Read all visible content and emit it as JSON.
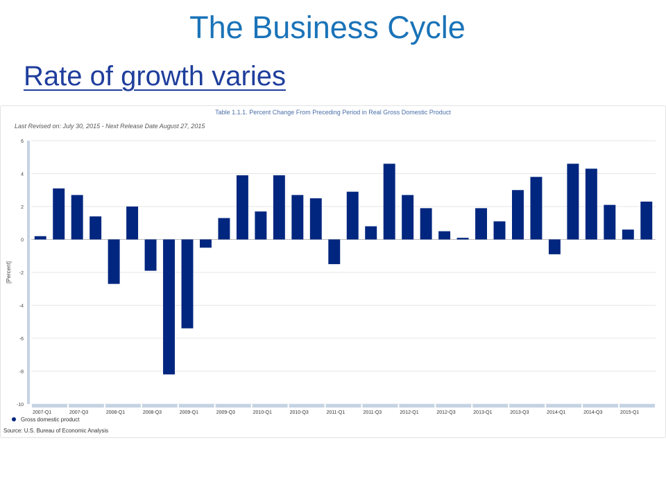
{
  "slide": {
    "title": "The Business Cycle",
    "subtitle": "Rate of growth varies"
  },
  "colors": {
    "bar": "#00267f",
    "title": "#1a73b8",
    "subtitle": "#1f3e9c",
    "axis_band": "#c5d3e3",
    "grid": "#e6e6e6"
  },
  "chart_data": {
    "type": "bar",
    "title": "Table 1.1.1. Percent Change From Preceding Period in Real Gross Domestic Product",
    "subtitle": "Last Revised on: July 30, 2015 - Next Release Date August 27, 2015",
    "ylabel": "[Percent]",
    "ylim": [
      -10,
      6
    ],
    "yticks": [
      6,
      4,
      2,
      0,
      -2,
      -4,
      -6,
      -8,
      -10
    ],
    "grid": true,
    "x_tick_labels": [
      "2007-Q1",
      "2007-Q3",
      "2008-Q1",
      "2008-Q3",
      "2009-Q1",
      "2009-Q3",
      "2010-Q1",
      "2010-Q3",
      "2011-Q1",
      "2011-Q3",
      "2012-Q1",
      "2012-Q3",
      "2013-Q1",
      "2013-Q3",
      "2014-Q1",
      "2014-Q3",
      "2015-Q1"
    ],
    "categories": [
      "2007-Q1",
      "2007-Q2",
      "2007-Q3",
      "2007-Q4",
      "2008-Q1",
      "2008-Q2",
      "2008-Q3",
      "2008-Q4",
      "2009-Q1",
      "2009-Q2",
      "2009-Q3",
      "2009-Q4",
      "2010-Q1",
      "2010-Q2",
      "2010-Q3",
      "2010-Q4",
      "2011-Q1",
      "2011-Q2",
      "2011-Q3",
      "2011-Q4",
      "2012-Q1",
      "2012-Q2",
      "2012-Q3",
      "2012-Q4",
      "2013-Q1",
      "2013-Q2",
      "2013-Q3",
      "2013-Q4",
      "2014-Q1",
      "2014-Q2",
      "2014-Q3",
      "2014-Q4",
      "2015-Q1",
      "2015-Q2"
    ],
    "series": [
      {
        "name": "Gross domestic product",
        "values": [
          0.2,
          3.1,
          2.7,
          1.4,
          -2.7,
          2.0,
          -1.9,
          -8.2,
          -5.4,
          -0.5,
          1.3,
          3.9,
          1.7,
          3.9,
          2.7,
          2.5,
          -1.5,
          2.9,
          0.8,
          4.6,
          2.7,
          1.9,
          0.5,
          0.1,
          1.9,
          1.1,
          3.0,
          3.8,
          -0.9,
          4.6,
          4.3,
          2.1,
          0.6,
          2.3
        ]
      }
    ],
    "legend": {
      "position": "bottom-left",
      "label": "Gross domestic product"
    },
    "source": "Source: U.S. Bureau of Economic Analysis"
  }
}
